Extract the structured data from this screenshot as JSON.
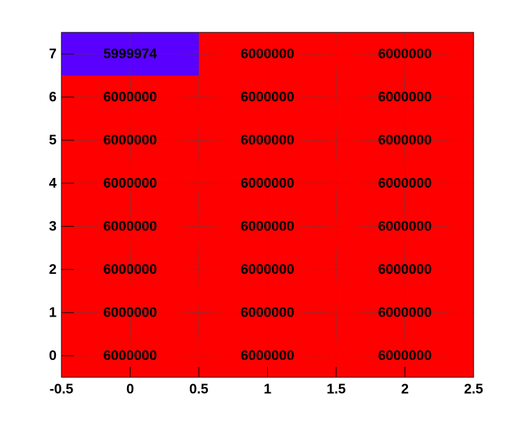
{
  "chart_data": {
    "type": "heatmap",
    "x": [
      0,
      1,
      2
    ],
    "y": [
      0,
      1,
      2,
      3,
      4,
      5,
      6,
      7
    ],
    "values": [
      [
        6000000,
        6000000,
        6000000
      ],
      [
        6000000,
        6000000,
        6000000
      ],
      [
        6000000,
        6000000,
        6000000
      ],
      [
        6000000,
        6000000,
        6000000
      ],
      [
        6000000,
        6000000,
        6000000
      ],
      [
        6000000,
        6000000,
        6000000
      ],
      [
        6000000,
        6000000,
        6000000
      ],
      [
        5999974,
        6000000,
        6000000
      ]
    ],
    "color_low": "#5a00ff",
    "color_high": "#ff0000",
    "xlim": [
      -0.5,
      2.5
    ],
    "xticks": [
      -0.5,
      0,
      0.5,
      1,
      1.5,
      2,
      2.5
    ],
    "ylim": [
      -0.5,
      7.5
    ],
    "yticks": [
      0,
      1,
      2,
      3,
      4,
      5,
      6,
      7
    ],
    "grid": true
  }
}
